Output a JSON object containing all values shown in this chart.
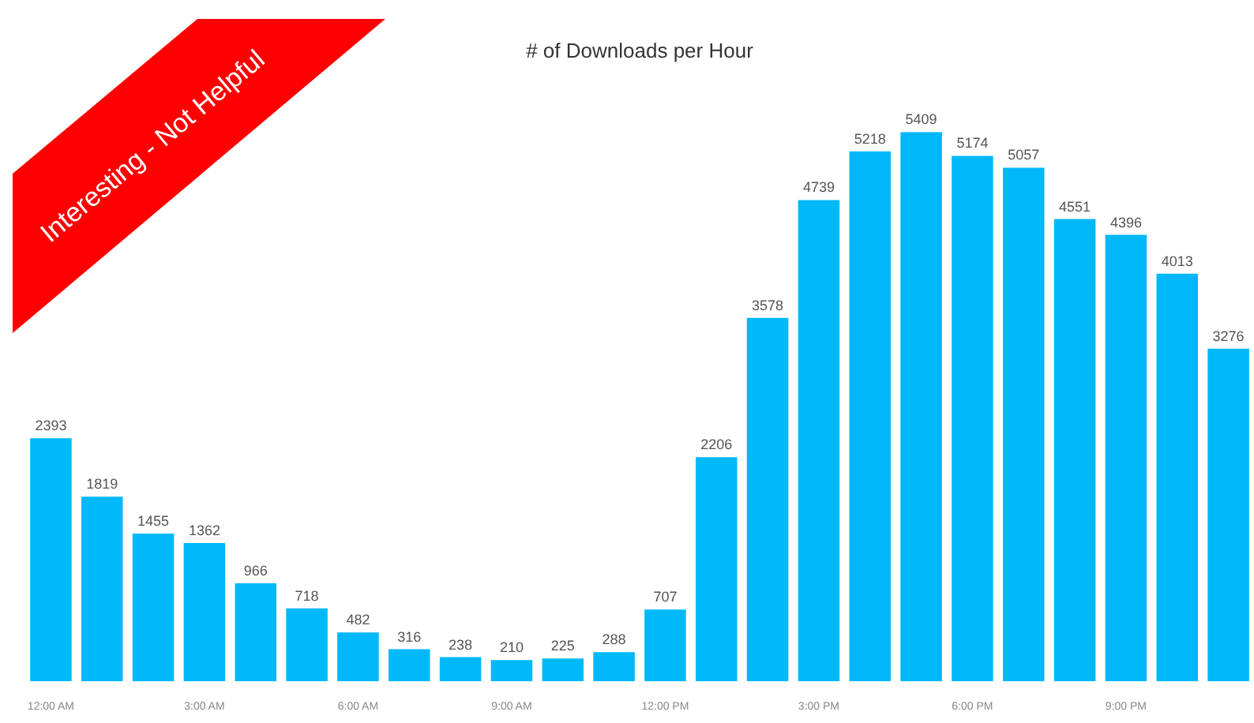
{
  "chart_data": {
    "type": "bar",
    "title": "# of Downloads per Hour",
    "categories": [
      "12:00 AM",
      null,
      null,
      "3:00 AM",
      null,
      null,
      "6:00 AM",
      null,
      null,
      "9:00 AM",
      null,
      null,
      "12:00 PM",
      null,
      null,
      "3:00 PM",
      null,
      null,
      "6:00 PM",
      null,
      null,
      "9:00 PM",
      null,
      null
    ],
    "values": [
      2393,
      1819,
      1455,
      1362,
      966,
      718,
      482,
      316,
      238,
      210,
      225,
      288,
      707,
      2206,
      3578,
      4739,
      5218,
      5409,
      5174,
      5057,
      4551,
      4396,
      4013,
      3276
    ],
    "color": "#01b8fa",
    "data_labels": true,
    "annotations": [
      "Interesting - Not Helpful"
    ]
  }
}
